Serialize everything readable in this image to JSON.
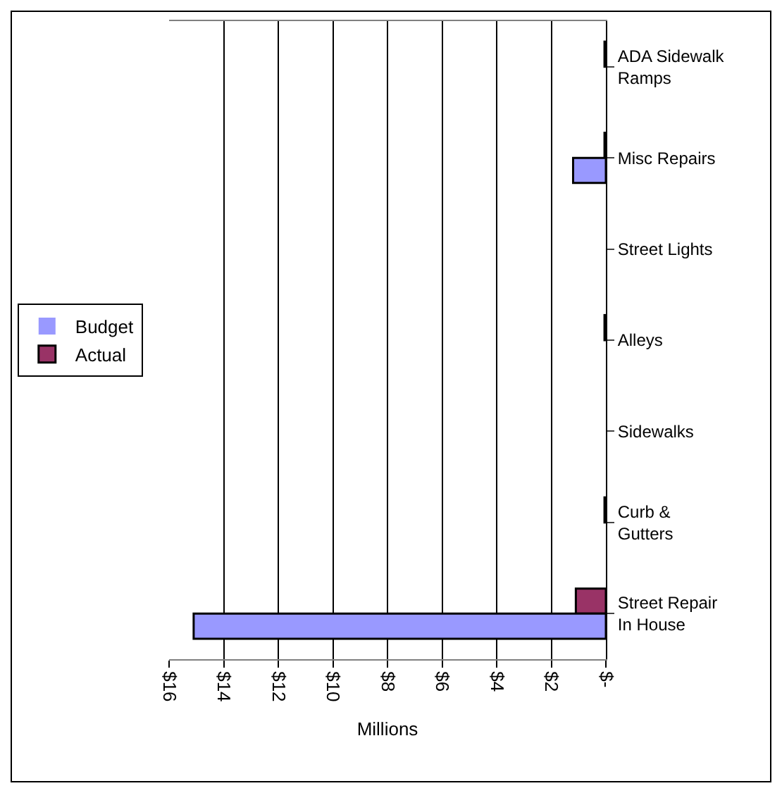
{
  "chart_data": {
    "type": "bar",
    "orientation": "horizontal",
    "xlabel": "Millions",
    "categories": [
      "ADA Sidewalk Ramps",
      "Misc Repairs",
      "Street Lights",
      "Alleys",
      "Sidewalks",
      "Curb & Gutters",
      "Street Repair In House"
    ],
    "series": [
      {
        "name": "Budget",
        "color": "#9999ff",
        "values": [
          0,
          1.2,
          0,
          0,
          0,
          0,
          15.1
        ]
      },
      {
        "name": "Actual",
        "color": "#993366",
        "values": [
          0.05,
          0.05,
          0,
          0.05,
          0,
          0.05,
          1.1
        ]
      }
    ],
    "xlim": [
      16,
      0
    ],
    "xticks": [
      {
        "value": 16,
        "label": "$16"
      },
      {
        "value": 14,
        "label": "$14"
      },
      {
        "value": 12,
        "label": "$12"
      },
      {
        "value": 10,
        "label": "$10"
      },
      {
        "value": 8,
        "label": "$8"
      },
      {
        "value": 6,
        "label": "$6"
      },
      {
        "value": 4,
        "label": "$4"
      },
      {
        "value": 2,
        "label": "$2"
      },
      {
        "value": 0,
        "label": "$-"
      }
    ],
    "grid": "x",
    "legend": "left"
  }
}
